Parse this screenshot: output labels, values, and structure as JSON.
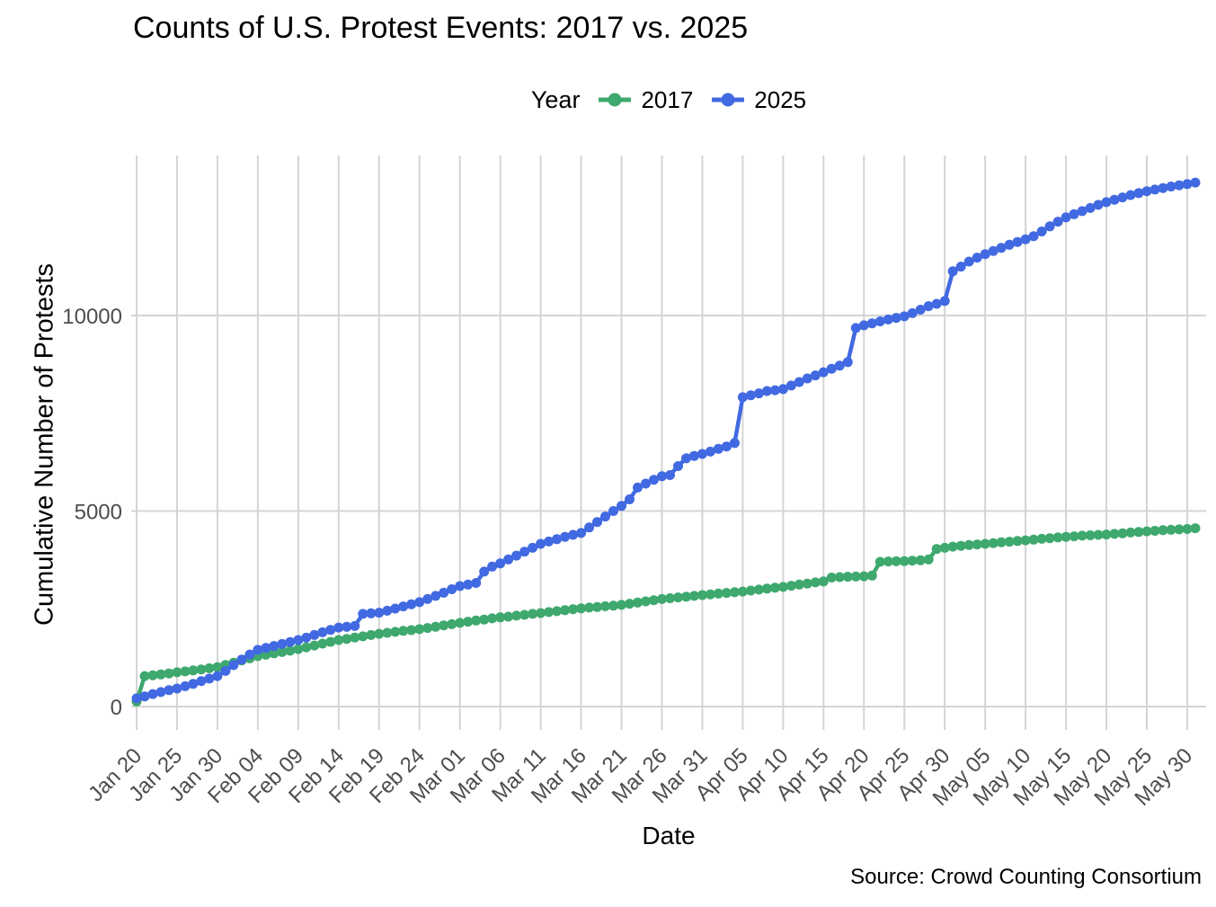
{
  "title": "Counts of U.S. Protest Events: 2017 vs. 2025",
  "legend": {
    "title": "Year",
    "items": [
      {
        "label": "2017",
        "color": "#3EA86E"
      },
      {
        "label": "2025",
        "color": "#4169E1"
      }
    ]
  },
  "axes": {
    "x_title": "Date",
    "y_title": "Cumulative Number of Protests",
    "y_ticks": [
      {
        "label": "0",
        "value": 0
      },
      {
        "label": "5000",
        "value": 5000
      },
      {
        "label": "10000",
        "value": 10000
      }
    ],
    "x_ticks": [
      {
        "label": "Jan 20",
        "day": 0
      },
      {
        "label": "Jan 25",
        "day": 5
      },
      {
        "label": "Jan 30",
        "day": 10
      },
      {
        "label": "Feb 04",
        "day": 15
      },
      {
        "label": "Feb 09",
        "day": 20
      },
      {
        "label": "Feb 14",
        "day": 25
      },
      {
        "label": "Feb 19",
        "day": 30
      },
      {
        "label": "Feb 24",
        "day": 35
      },
      {
        "label": "Mar 01",
        "day": 40
      },
      {
        "label": "Mar 06",
        "day": 45
      },
      {
        "label": "Mar 11",
        "day": 50
      },
      {
        "label": "Mar 16",
        "day": 55
      },
      {
        "label": "Mar 21",
        "day": 60
      },
      {
        "label": "Mar 26",
        "day": 65
      },
      {
        "label": "Mar 31",
        "day": 70
      },
      {
        "label": "Apr 05",
        "day": 75
      },
      {
        "label": "Apr 10",
        "day": 80
      },
      {
        "label": "Apr 15",
        "day": 85
      },
      {
        "label": "Apr 20",
        "day": 90
      },
      {
        "label": "Apr 25",
        "day": 95
      },
      {
        "label": "Apr 30",
        "day": 100
      },
      {
        "label": "May 05",
        "day": 105
      },
      {
        "label": "May 10",
        "day": 110
      },
      {
        "label": "May 15",
        "day": 115
      },
      {
        "label": "May 20",
        "day": 120
      },
      {
        "label": "May 25",
        "day": 125
      },
      {
        "label": "May 30",
        "day": 130
      }
    ]
  },
  "source": "Source: Crowd Counting Consortium",
  "style": {
    "gridline_color": "#D4D4D4",
    "tick_text_color": "#4D4D4D",
    "background": "#FFFFFF"
  },
  "chart_data": {
    "type": "line",
    "title": "Counts of U.S. Protest Events: 2017 vs. 2025",
    "xlabel": "Date",
    "ylabel": "Cumulative Number of Protests",
    "ylim": [
      0,
      14000
    ],
    "grid": true,
    "legend_position": "top",
    "marker": "point",
    "x": [
      "Jan 20",
      "Jan 21",
      "Jan 22",
      "Jan 23",
      "Jan 24",
      "Jan 25",
      "Jan 26",
      "Jan 27",
      "Jan 28",
      "Jan 29",
      "Jan 30",
      "Jan 31",
      "Feb 01",
      "Feb 02",
      "Feb 03",
      "Feb 04",
      "Feb 05",
      "Feb 06",
      "Feb 07",
      "Feb 08",
      "Feb 09",
      "Feb 10",
      "Feb 11",
      "Feb 12",
      "Feb 13",
      "Feb 14",
      "Feb 15",
      "Feb 16",
      "Feb 17",
      "Feb 18",
      "Feb 19",
      "Feb 20",
      "Feb 21",
      "Feb 22",
      "Feb 23",
      "Feb 24",
      "Feb 25",
      "Feb 26",
      "Feb 27",
      "Feb 28",
      "Mar 01",
      "Mar 02",
      "Mar 03",
      "Mar 04",
      "Mar 05",
      "Mar 06",
      "Mar 07",
      "Mar 08",
      "Mar 09",
      "Mar 10",
      "Mar 11",
      "Mar 12",
      "Mar 13",
      "Mar 14",
      "Mar 15",
      "Mar 16",
      "Mar 17",
      "Mar 18",
      "Mar 19",
      "Mar 20",
      "Mar 21",
      "Mar 22",
      "Mar 23",
      "Mar 24",
      "Mar 25",
      "Mar 26",
      "Mar 27",
      "Mar 28",
      "Mar 29",
      "Mar 30",
      "Mar 31",
      "Apr 01",
      "Apr 02",
      "Apr 03",
      "Apr 04",
      "Apr 05",
      "Apr 06",
      "Apr 07",
      "Apr 08",
      "Apr 09",
      "Apr 10",
      "Apr 11",
      "Apr 12",
      "Apr 13",
      "Apr 14",
      "Apr 15",
      "Apr 16",
      "Apr 17",
      "Apr 18",
      "Apr 19",
      "Apr 20",
      "Apr 21",
      "Apr 22",
      "Apr 23",
      "Apr 24",
      "Apr 25",
      "Apr 26",
      "Apr 27",
      "Apr 28",
      "Apr 29",
      "Apr 30",
      "May 01",
      "May 02",
      "May 03",
      "May 04",
      "May 05",
      "May 06",
      "May 07",
      "May 08",
      "May 09",
      "May 10",
      "May 11",
      "May 12",
      "May 13",
      "May 14",
      "May 15",
      "May 16",
      "May 17",
      "May 18",
      "May 19",
      "May 20",
      "May 21",
      "May 22",
      "May 23",
      "May 24",
      "May 25",
      "May 26",
      "May 27",
      "May 28",
      "May 29",
      "May 30",
      "May 31"
    ],
    "series": [
      {
        "name": "2017",
        "color": "#3EA86E",
        "values": [
          130,
          780,
          800,
          820,
          845,
          875,
          900,
          925,
          950,
          980,
          1010,
          1065,
          1120,
          1180,
          1235,
          1290,
          1325,
          1360,
          1395,
          1430,
          1470,
          1515,
          1560,
          1610,
          1655,
          1700,
          1730,
          1765,
          1795,
          1830,
          1860,
          1885,
          1910,
          1935,
          1955,
          1980,
          2010,
          2040,
          2075,
          2105,
          2140,
          2170,
          2200,
          2225,
          2255,
          2280,
          2300,
          2325,
          2345,
          2370,
          2390,
          2415,
          2440,
          2465,
          2490,
          2510,
          2530,
          2545,
          2565,
          2580,
          2600,
          2630,
          2660,
          2690,
          2720,
          2750,
          2770,
          2790,
          2810,
          2830,
          2850,
          2870,
          2890,
          2905,
          2925,
          2940,
          2965,
          2990,
          3015,
          3040,
          3060,
          3090,
          3120,
          3145,
          3175,
          3200,
          3300,
          3310,
          3320,
          3325,
          3330,
          3350,
          3700,
          3710,
          3715,
          3720,
          3730,
          3740,
          3760,
          4030,
          4060,
          4090,
          4110,
          4130,
          4145,
          4160,
          4180,
          4200,
          4215,
          4235,
          4250,
          4270,
          4290,
          4305,
          4325,
          4340,
          4355,
          4370,
          4380,
          4390,
          4400,
          4415,
          4430,
          4450,
          4465,
          4480,
          4495,
          4510,
          4520,
          4530,
          4540,
          4560
        ]
      },
      {
        "name": "2025",
        "color": "#4169E1",
        "values": [
          210,
          260,
          320,
          370,
          420,
          460,
          520,
          580,
          650,
          715,
          780,
          910,
          1060,
          1200,
          1330,
          1450,
          1500,
          1550,
          1600,
          1650,
          1700,
          1760,
          1830,
          1900,
          1960,
          2020,
          2040,
          2060,
          2370,
          2385,
          2400,
          2450,
          2505,
          2560,
          2615,
          2670,
          2750,
          2830,
          2910,
          3000,
          3080,
          3120,
          3160,
          3450,
          3580,
          3660,
          3760,
          3860,
          3960,
          4060,
          4160,
          4220,
          4280,
          4340,
          4390,
          4440,
          4580,
          4720,
          4860,
          5000,
          5130,
          5300,
          5600,
          5700,
          5800,
          5890,
          5920,
          6150,
          6350,
          6410,
          6460,
          6520,
          6590,
          6650,
          6740,
          7910,
          7960,
          8010,
          8070,
          8090,
          8120,
          8210,
          8300,
          8390,
          8470,
          8550,
          8640,
          8720,
          8810,
          9680,
          9750,
          9800,
          9850,
          9900,
          9940,
          9980,
          10060,
          10150,
          10240,
          10300,
          10370,
          11130,
          11250,
          11380,
          11480,
          11570,
          11650,
          11730,
          11810,
          11880,
          11950,
          12030,
          12150,
          12280,
          12400,
          12510,
          12590,
          12670,
          12750,
          12830,
          12900,
          12960,
          13020,
          13080,
          13130,
          13180,
          13220,
          13260,
          13300,
          13330,
          13360,
          13400
        ]
      }
    ]
  }
}
